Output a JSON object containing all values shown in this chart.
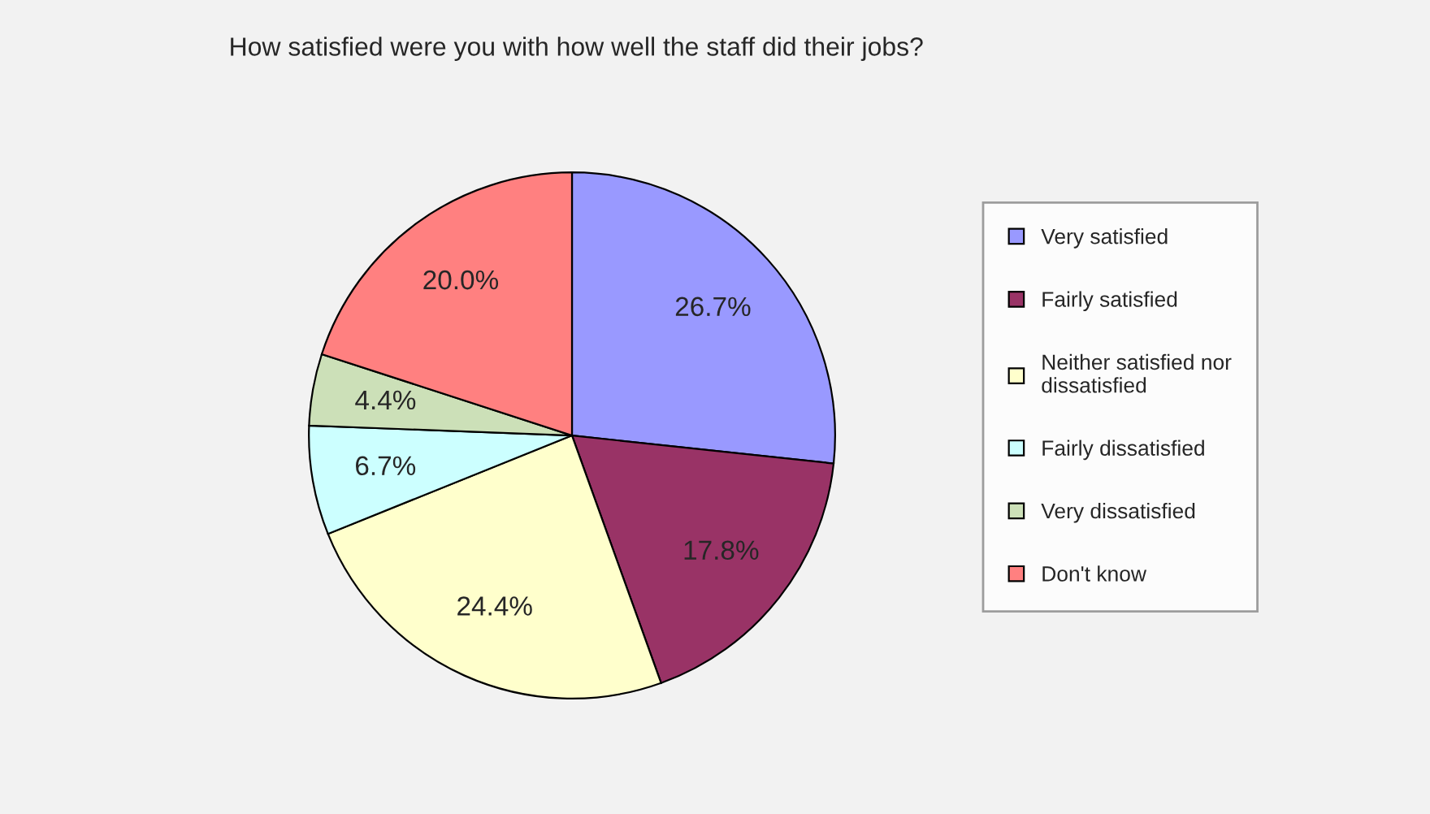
{
  "chart_data": {
    "type": "pie",
    "title": "How satisfied were you with how well the staff did their jobs?",
    "categories": [
      "Very satisfied",
      "Fairly satisfied",
      "Neither satisfied nor dissatisfied",
      "Fairly dissatisfied",
      "Very dissatisfied",
      "Don't know"
    ],
    "values": [
      26.7,
      17.8,
      24.4,
      6.7,
      4.4,
      20.0
    ],
    "value_labels": [
      "26.7%",
      "17.8%",
      "24.4%",
      "6.7%",
      "4.4%",
      "20.0%"
    ],
    "colors": [
      "#9999ff",
      "#993366",
      "#ffffcc",
      "#ccffff",
      "#cce0b8",
      "#ff8080"
    ],
    "legend": "right"
  }
}
